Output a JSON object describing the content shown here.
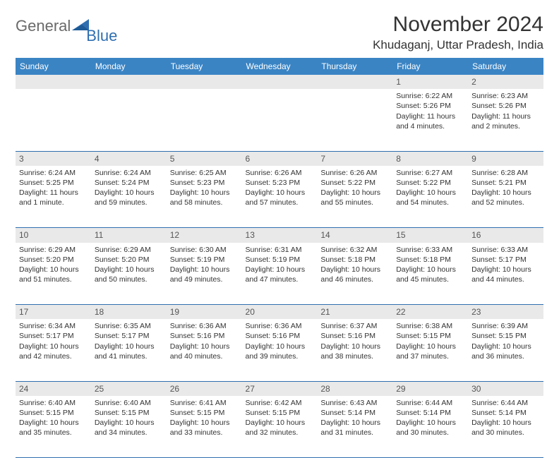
{
  "logo": {
    "text1": "General",
    "text2": "Blue"
  },
  "title": "November 2024",
  "location": "Khudaganj, Uttar Pradesh, India",
  "colors": {
    "header_bg": "#3a84c4",
    "header_text": "#ffffff",
    "daynum_bg": "#e9e9e9",
    "border": "#2f6fb0",
    "logo_gray": "#6a6a6a",
    "logo_blue": "#2f6fb0",
    "body_text": "#333333",
    "background": "#ffffff"
  },
  "typography": {
    "title_fontsize": 30,
    "location_fontsize": 17,
    "header_fontsize": 12,
    "daynum_fontsize": 12,
    "cell_fontsize": 10.5
  },
  "weekdays": [
    "Sunday",
    "Monday",
    "Tuesday",
    "Wednesday",
    "Thursday",
    "Friday",
    "Saturday"
  ],
  "weeks": [
    [
      null,
      null,
      null,
      null,
      null,
      {
        "n": "1",
        "sr": "Sunrise: 6:22 AM",
        "ss": "Sunset: 5:26 PM",
        "dl": "Daylight: 11 hours and 4 minutes."
      },
      {
        "n": "2",
        "sr": "Sunrise: 6:23 AM",
        "ss": "Sunset: 5:26 PM",
        "dl": "Daylight: 11 hours and 2 minutes."
      }
    ],
    [
      {
        "n": "3",
        "sr": "Sunrise: 6:24 AM",
        "ss": "Sunset: 5:25 PM",
        "dl": "Daylight: 11 hours and 1 minute."
      },
      {
        "n": "4",
        "sr": "Sunrise: 6:24 AM",
        "ss": "Sunset: 5:24 PM",
        "dl": "Daylight: 10 hours and 59 minutes."
      },
      {
        "n": "5",
        "sr": "Sunrise: 6:25 AM",
        "ss": "Sunset: 5:23 PM",
        "dl": "Daylight: 10 hours and 58 minutes."
      },
      {
        "n": "6",
        "sr": "Sunrise: 6:26 AM",
        "ss": "Sunset: 5:23 PM",
        "dl": "Daylight: 10 hours and 57 minutes."
      },
      {
        "n": "7",
        "sr": "Sunrise: 6:26 AM",
        "ss": "Sunset: 5:22 PM",
        "dl": "Daylight: 10 hours and 55 minutes."
      },
      {
        "n": "8",
        "sr": "Sunrise: 6:27 AM",
        "ss": "Sunset: 5:22 PM",
        "dl": "Daylight: 10 hours and 54 minutes."
      },
      {
        "n": "9",
        "sr": "Sunrise: 6:28 AM",
        "ss": "Sunset: 5:21 PM",
        "dl": "Daylight: 10 hours and 52 minutes."
      }
    ],
    [
      {
        "n": "10",
        "sr": "Sunrise: 6:29 AM",
        "ss": "Sunset: 5:20 PM",
        "dl": "Daylight: 10 hours and 51 minutes."
      },
      {
        "n": "11",
        "sr": "Sunrise: 6:29 AM",
        "ss": "Sunset: 5:20 PM",
        "dl": "Daylight: 10 hours and 50 minutes."
      },
      {
        "n": "12",
        "sr": "Sunrise: 6:30 AM",
        "ss": "Sunset: 5:19 PM",
        "dl": "Daylight: 10 hours and 49 minutes."
      },
      {
        "n": "13",
        "sr": "Sunrise: 6:31 AM",
        "ss": "Sunset: 5:19 PM",
        "dl": "Daylight: 10 hours and 47 minutes."
      },
      {
        "n": "14",
        "sr": "Sunrise: 6:32 AM",
        "ss": "Sunset: 5:18 PM",
        "dl": "Daylight: 10 hours and 46 minutes."
      },
      {
        "n": "15",
        "sr": "Sunrise: 6:33 AM",
        "ss": "Sunset: 5:18 PM",
        "dl": "Daylight: 10 hours and 45 minutes."
      },
      {
        "n": "16",
        "sr": "Sunrise: 6:33 AM",
        "ss": "Sunset: 5:17 PM",
        "dl": "Daylight: 10 hours and 44 minutes."
      }
    ],
    [
      {
        "n": "17",
        "sr": "Sunrise: 6:34 AM",
        "ss": "Sunset: 5:17 PM",
        "dl": "Daylight: 10 hours and 42 minutes."
      },
      {
        "n": "18",
        "sr": "Sunrise: 6:35 AM",
        "ss": "Sunset: 5:17 PM",
        "dl": "Daylight: 10 hours and 41 minutes."
      },
      {
        "n": "19",
        "sr": "Sunrise: 6:36 AM",
        "ss": "Sunset: 5:16 PM",
        "dl": "Daylight: 10 hours and 40 minutes."
      },
      {
        "n": "20",
        "sr": "Sunrise: 6:36 AM",
        "ss": "Sunset: 5:16 PM",
        "dl": "Daylight: 10 hours and 39 minutes."
      },
      {
        "n": "21",
        "sr": "Sunrise: 6:37 AM",
        "ss": "Sunset: 5:16 PM",
        "dl": "Daylight: 10 hours and 38 minutes."
      },
      {
        "n": "22",
        "sr": "Sunrise: 6:38 AM",
        "ss": "Sunset: 5:15 PM",
        "dl": "Daylight: 10 hours and 37 minutes."
      },
      {
        "n": "23",
        "sr": "Sunrise: 6:39 AM",
        "ss": "Sunset: 5:15 PM",
        "dl": "Daylight: 10 hours and 36 minutes."
      }
    ],
    [
      {
        "n": "24",
        "sr": "Sunrise: 6:40 AM",
        "ss": "Sunset: 5:15 PM",
        "dl": "Daylight: 10 hours and 35 minutes."
      },
      {
        "n": "25",
        "sr": "Sunrise: 6:40 AM",
        "ss": "Sunset: 5:15 PM",
        "dl": "Daylight: 10 hours and 34 minutes."
      },
      {
        "n": "26",
        "sr": "Sunrise: 6:41 AM",
        "ss": "Sunset: 5:15 PM",
        "dl": "Daylight: 10 hours and 33 minutes."
      },
      {
        "n": "27",
        "sr": "Sunrise: 6:42 AM",
        "ss": "Sunset: 5:15 PM",
        "dl": "Daylight: 10 hours and 32 minutes."
      },
      {
        "n": "28",
        "sr": "Sunrise: 6:43 AM",
        "ss": "Sunset: 5:14 PM",
        "dl": "Daylight: 10 hours and 31 minutes."
      },
      {
        "n": "29",
        "sr": "Sunrise: 6:44 AM",
        "ss": "Sunset: 5:14 PM",
        "dl": "Daylight: 10 hours and 30 minutes."
      },
      {
        "n": "30",
        "sr": "Sunrise: 6:44 AM",
        "ss": "Sunset: 5:14 PM",
        "dl": "Daylight: 10 hours and 30 minutes."
      }
    ]
  ]
}
